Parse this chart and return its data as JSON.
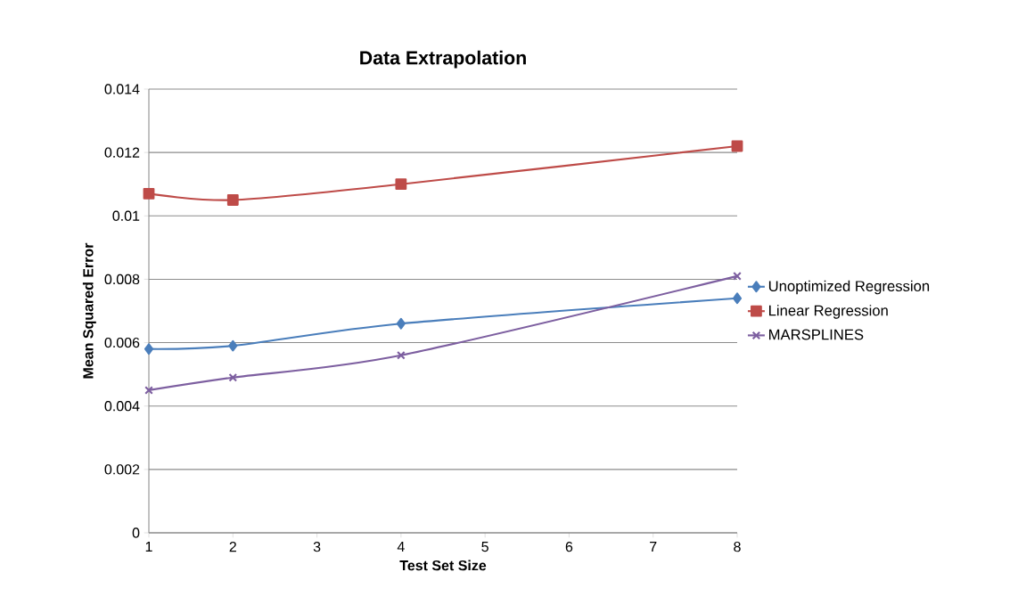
{
  "chart_data": {
    "type": "line",
    "title": "Data Extrapolation",
    "xlabel": "Test Set Size",
    "ylabel": "Mean Squared Error",
    "x": [
      1,
      2,
      4,
      8
    ],
    "series": [
      {
        "name": "Unoptimized Regression",
        "color": "#4a7ebb",
        "marker": "diamond",
        "values": [
          0.0058,
          0.0059,
          0.0066,
          0.0074
        ]
      },
      {
        "name": "Linear Regression",
        "color": "#be4b48",
        "marker": "square",
        "values": [
          0.0107,
          0.0105,
          0.011,
          0.0122
        ]
      },
      {
        "name": "MARSPLINES",
        "color": "#7d5fa0",
        "marker": "cross",
        "values": [
          0.0045,
          0.0049,
          0.0056,
          0.0081
        ]
      }
    ],
    "xlim": [
      1,
      8
    ],
    "xticks": [
      1,
      2,
      3,
      4,
      5,
      6,
      7,
      8
    ],
    "ylim": [
      0,
      0.014
    ],
    "yticks": [
      0,
      0.002,
      0.004,
      0.006,
      0.008,
      0.01,
      0.012,
      0.014
    ],
    "grid": "y",
    "legend": "right",
    "line_style": "solid"
  }
}
